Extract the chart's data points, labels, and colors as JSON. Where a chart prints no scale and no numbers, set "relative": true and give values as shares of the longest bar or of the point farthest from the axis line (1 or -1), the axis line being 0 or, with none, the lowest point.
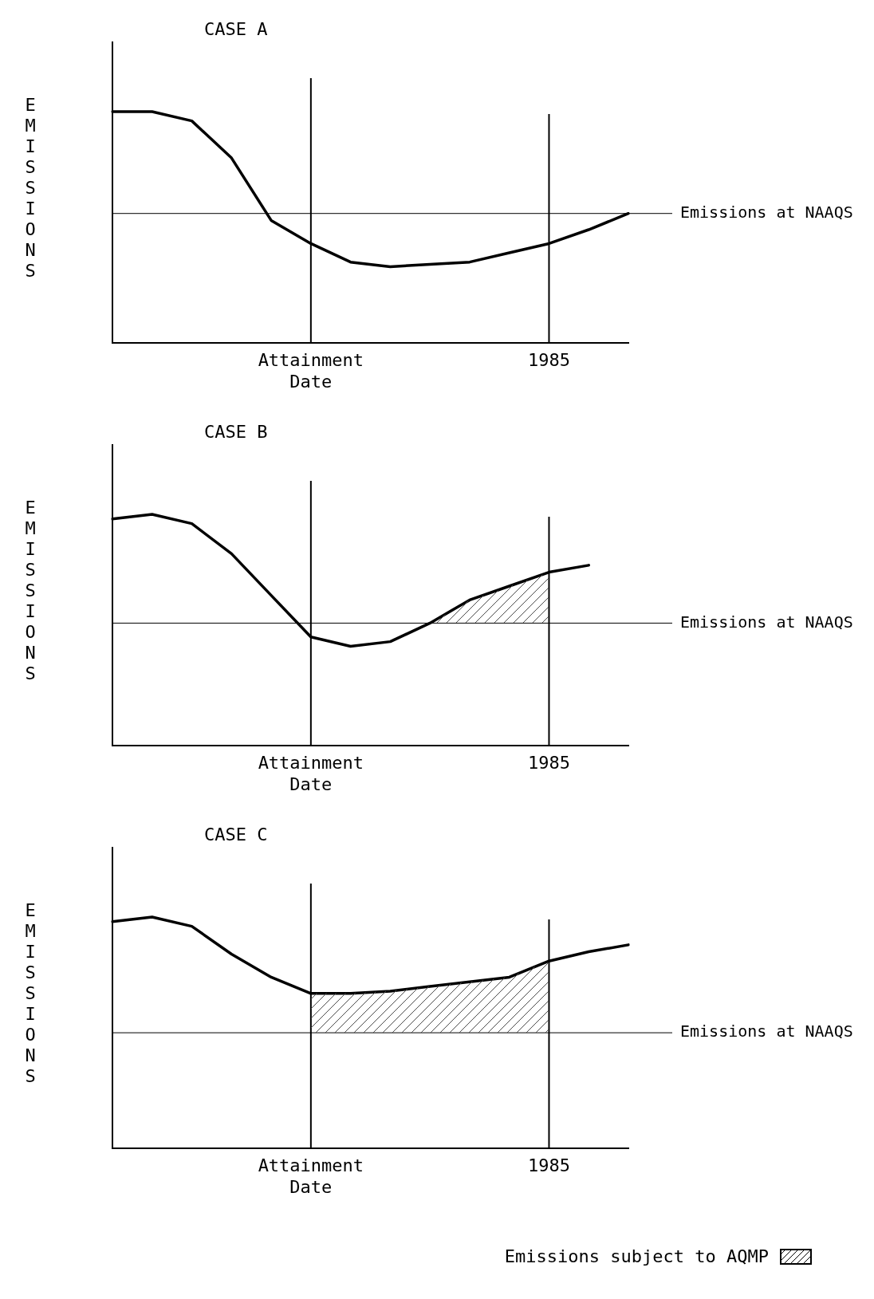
{
  "chart_data": [
    {
      "type": "line",
      "title": "CASE A",
      "ylabel": "EMISSIONS",
      "relative": true,
      "tick_labels": "x",
      "grid": "x",
      "marker": "none",
      "line_style": "solid",
      "categories": [
        null,
        null,
        null,
        null,
        null,
        "Attainment Date",
        null,
        null,
        null,
        null,
        null,
        "1985",
        null,
        null
      ],
      "series": [
        {
          "color": "#000000",
          "values": [
            1.0,
            1.0,
            0.96,
            0.8,
            0.53,
            0.43,
            0.35,
            0.33,
            0.34,
            0.35,
            0.39,
            0.43,
            0.49,
            0.56
          ]
        }
      ],
      "ref_lines": [
        {
          "axis": "y",
          "value": 0.56,
          "label": "Emissions at NAAQS"
        }
      ]
    },
    {
      "type": "line",
      "title": "CASE B",
      "ylabel": "EMISSIONS",
      "relative": true,
      "tick_labels": "x",
      "grid": "x",
      "marker": "none",
      "line_style": "solid",
      "categories": [
        null,
        null,
        null,
        null,
        null,
        "Attainment Date",
        null,
        null,
        null,
        null,
        null,
        "1985",
        null,
        null
      ],
      "series": [
        {
          "color": "#000000",
          "values": [
            0.98,
            1.0,
            0.96,
            0.83,
            0.65,
            0.47,
            0.43,
            0.45,
            0.53,
            0.63,
            0.69,
            0.75,
            0.78,
            null
          ]
        }
      ],
      "ref_lines": [
        {
          "axis": "y",
          "value": 0.53,
          "label": "Emissions at NAAQS"
        }
      ]
    },
    {
      "type": "line",
      "title": "CASE C",
      "ylabel": "EMISSIONS",
      "relative": true,
      "tick_labels": "x",
      "grid": "x",
      "marker": "none",
      "line_style": "solid",
      "categories": [
        null,
        null,
        null,
        null,
        null,
        "Attainment Date",
        null,
        null,
        null,
        null,
        null,
        "1985",
        null,
        null
      ],
      "series": [
        {
          "color": "#000000",
          "values": [
            0.98,
            1.0,
            0.96,
            0.84,
            0.74,
            0.67,
            0.67,
            0.68,
            0.7,
            0.72,
            0.74,
            0.81,
            0.85,
            0.88
          ]
        }
      ],
      "ref_lines": [
        {
          "axis": "y",
          "value": 0.5,
          "label": "Emissions at NAAQS"
        }
      ],
      "annotations": [
        "Emissions subject to AQMP"
      ]
    }
  ]
}
